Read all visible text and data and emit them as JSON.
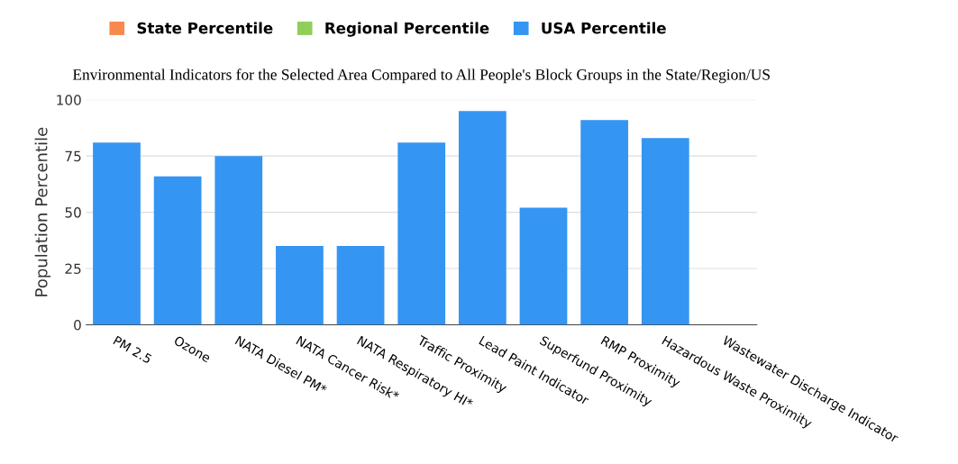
{
  "chart_data": {
    "type": "bar",
    "title": "Environmental Indicators for the Selected Area Compared to All People's Block Groups in the State/Region/US",
    "ylabel": "Population Percentile",
    "categories": [
      "PM 2.5",
      "Ozone",
      "NATA Diesel PM*",
      "NATA Cancer Risk*",
      "NATA Respiratory HI*",
      "Traffic Proximity",
      "Lead Paint Indicator",
      "Superfund Proximity",
      "RMP Proximity",
      "Hazardous Waste Proximity",
      "Wastewater Discharge Indicator"
    ],
    "series": [
      {
        "name": "State Percentile",
        "color": "#f7894f",
        "values": [
          null,
          null,
          null,
          null,
          null,
          null,
          null,
          null,
          null,
          null,
          null
        ]
      },
      {
        "name": "Regional Percentile",
        "color": "#8fce5b",
        "values": [
          null,
          null,
          null,
          null,
          null,
          null,
          null,
          null,
          null,
          null,
          null
        ]
      },
      {
        "name": "USA Percentile",
        "color": "#3595f2",
        "values": [
          81,
          66,
          75,
          35,
          35,
          81,
          95,
          52,
          91,
          83,
          null
        ]
      }
    ],
    "ylim": [
      0,
      100
    ],
    "yticks": [
      0,
      25,
      50,
      75,
      100
    ],
    "grid": "y",
    "legend": "top"
  }
}
